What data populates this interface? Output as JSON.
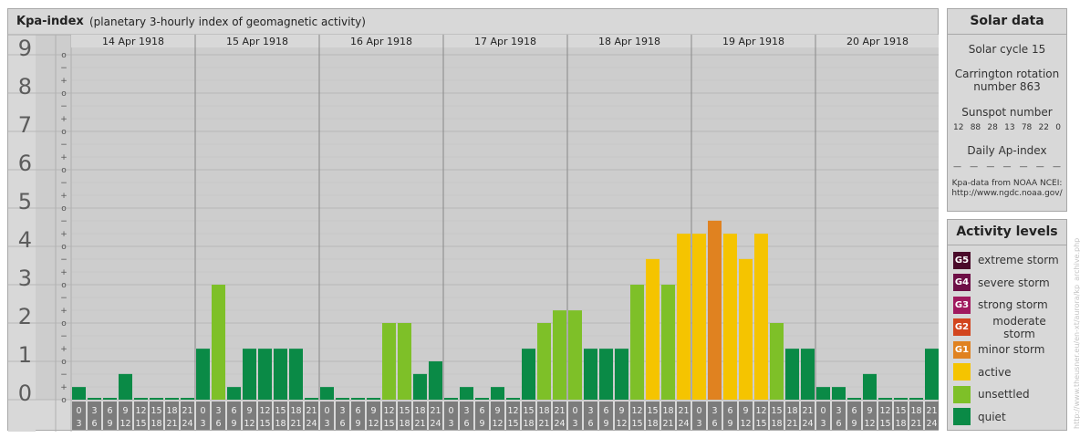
{
  "chart_data": {
    "type": "bar",
    "title": "Kpa-index",
    "subtitle": "(planetary 3-hourly index of geomagnetic activity)",
    "ylim": [
      0,
      9
    ],
    "yticks": [
      "0",
      "1",
      "2",
      "3",
      "4",
      "5",
      "6",
      "7",
      "8",
      "9"
    ],
    "minor_ticks": [
      "o",
      "+",
      "−",
      "o",
      "+",
      "−",
      "o",
      "+",
      "−",
      "o",
      "+",
      "−",
      "o",
      "+",
      "−",
      "o",
      "+",
      "−",
      "o",
      "+",
      "−",
      "o",
      "+",
      "−",
      "o",
      "+",
      "−",
      "o"
    ],
    "days": [
      "14 Apr 1918",
      "15 Apr 1918",
      "16 Apr 1918",
      "17 Apr 1918",
      "18 Apr 1918",
      "19 Apr 1918",
      "20 Apr 1918"
    ],
    "interval_start": [
      "0",
      "3",
      "6",
      "9",
      "12",
      "15",
      "18",
      "21"
    ],
    "interval_end": [
      "3",
      "6",
      "9",
      "12",
      "15",
      "18",
      "21",
      "24"
    ],
    "values": [
      0.33,
      0,
      0,
      0.67,
      0,
      0,
      0,
      0,
      1.33,
      3.0,
      0.33,
      1.33,
      1.33,
      1.33,
      1.33,
      0,
      0.33,
      0,
      0,
      0,
      2.0,
      2.0,
      0.67,
      1.0,
      0,
      0.33,
      0,
      0.33,
      0,
      1.33,
      2.0,
      2.33,
      2.33,
      1.33,
      1.33,
      1.33,
      3.0,
      3.67,
      3.0,
      4.33,
      4.33,
      4.67,
      4.33,
      3.67,
      4.33,
      2.0,
      1.33,
      1.33,
      0.33,
      0.33,
      0,
      0.67,
      0,
      0,
      0,
      1.33
    ]
  },
  "solar": {
    "title": "Solar data",
    "cycle": "Solar cycle 15",
    "carrington_line1": "Carrington rotation",
    "carrington_line2": "number 863",
    "sunspot_label": "Sunspot number",
    "sunspot_values": [
      "12",
      "88",
      "28",
      "13",
      "78",
      "22",
      "0"
    ],
    "ap_label": "Daily Ap-index",
    "ap_values": [
      "—",
      "—",
      "—",
      "—",
      "—",
      "—",
      "—"
    ],
    "source_line1": "Kpa-data from NOAA NCEI:",
    "source_line2": "http://www.ngdc.noaa.gov/"
  },
  "activity": {
    "title": "Activity levels",
    "levels": [
      {
        "code": "G5",
        "label": "extreme storm",
        "color": "#4a0a2a"
      },
      {
        "code": "G4",
        "label": "severe storm",
        "color": "#6e0f46"
      },
      {
        "code": "G3",
        "label": "strong storm",
        "color": "#a0195e"
      },
      {
        "code": "G2",
        "label": "moderate storm",
        "color": "#d2451e"
      },
      {
        "code": "G1",
        "label": "minor storm",
        "color": "#e08220"
      },
      {
        "code": "",
        "label": "active",
        "color": "#f5c400"
      },
      {
        "code": "",
        "label": "unsettled",
        "color": "#7ec028"
      },
      {
        "code": "",
        "label": "quiet",
        "color": "#0a8a46"
      }
    ]
  },
  "watermark": "http://www.theusner.eu/en-xt/aurora/kp_archive.php"
}
